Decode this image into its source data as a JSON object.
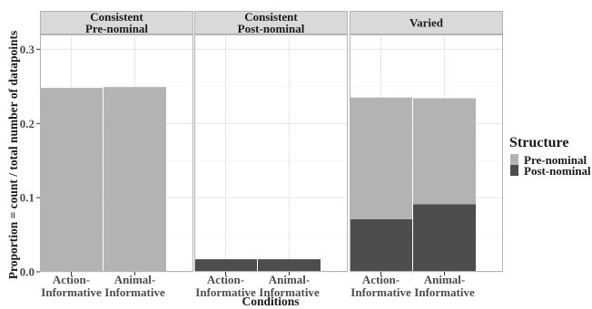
{
  "chart_data": {
    "type": "bar",
    "stacked": true,
    "ylabel": "Proportion = count / total number of datapoints",
    "xlabel": "Conditions",
    "ylim": [
      0,
      0.32
    ],
    "yticks": [
      0.0,
      0.1,
      0.2,
      0.3
    ],
    "ytick_labels": [
      "0.0",
      "0.1",
      "0.2",
      "0.3"
    ],
    "grid": true,
    "categories": [
      {
        "line1": "Action-",
        "line2": "Informative"
      },
      {
        "line1": "Animal-",
        "line2": "Informative"
      }
    ],
    "panels": [
      {
        "title_lines": [
          "Consistent",
          "Pre-nominal"
        ],
        "series": [
          {
            "name": "Pre-nominal",
            "values": [
              0.248,
              0.249
            ]
          },
          {
            "name": "Post-nominal",
            "values": [
              0,
              0
            ]
          }
        ]
      },
      {
        "title_lines": [
          "Consistent",
          "Post-nominal"
        ],
        "series": [
          {
            "name": "Pre-nominal",
            "values": [
              0,
              0
            ]
          },
          {
            "name": "Post-nominal",
            "values": [
              0.017,
              0.017
            ]
          }
        ]
      },
      {
        "title_lines": [
          "Varied"
        ],
        "series": [
          {
            "name": "Pre-nominal",
            "values": [
              0.164,
              0.143
            ]
          },
          {
            "name": "Post-nominal",
            "values": [
              0.071,
              0.091
            ]
          }
        ]
      }
    ],
    "legend": {
      "title": "Structure",
      "position": "right",
      "items": [
        {
          "label": "Pre-nominal",
          "color": "#b3b3b3"
        },
        {
          "label": "Post-nominal",
          "color": "#4d4d4d"
        }
      ]
    }
  }
}
